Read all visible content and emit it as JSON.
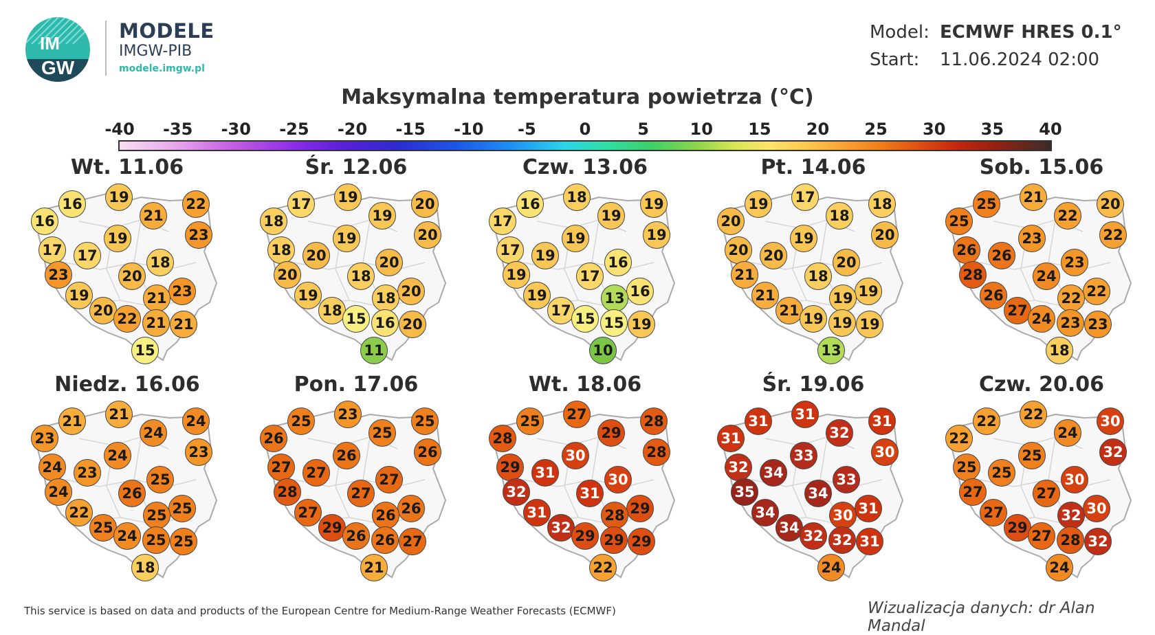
{
  "logo": {
    "circle_text_top": "IM",
    "circle_text_bottom": "GW",
    "title": "MODELE",
    "subtitle": "IMGW-PIB",
    "url": "modele.imgw.pl"
  },
  "meta": {
    "model_label": "Model:",
    "model_value": "ECMWF HRES 0.1°",
    "start_label": "Start:",
    "start_value": "11.06.2024 02:00"
  },
  "title": "Maksymalna temperatura powietrza (°C)",
  "scale": {
    "min": -40,
    "max": 40,
    "ticks": [
      "-40",
      "-35",
      "-30",
      "-25",
      "-20",
      "-15",
      "-10",
      "-5",
      "0",
      "5",
      "10",
      "15",
      "20",
      "25",
      "30",
      "35",
      "40"
    ]
  },
  "maps": [
    {
      "day": "Wt. 11.06",
      "temps": [
        16,
        16,
        19,
        22,
        21,
        23,
        17,
        19,
        17,
        18,
        23,
        20,
        19,
        23,
        21,
        20,
        22,
        21,
        21,
        15
      ]
    },
    {
      "day": "Śr. 12.06",
      "temps": [
        18,
        17,
        19,
        20,
        19,
        20,
        18,
        19,
        20,
        20,
        20,
        18,
        19,
        20,
        18,
        18,
        15,
        16,
        20,
        11
      ]
    },
    {
      "day": "Czw. 13.06",
      "temps": [
        17,
        16,
        18,
        19,
        19,
        19,
        17,
        19,
        19,
        16,
        19,
        17,
        19,
        16,
        13,
        17,
        15,
        15,
        19,
        10
      ]
    },
    {
      "day": "Pt. 14.06",
      "temps": [
        20,
        19,
        17,
        18,
        18,
        20,
        20,
        19,
        20,
        20,
        21,
        18,
        21,
        19,
        19,
        21,
        19,
        19,
        19,
        13
      ]
    },
    {
      "day": "Sob. 15.06",
      "temps": [
        25,
        25,
        21,
        20,
        22,
        22,
        26,
        23,
        26,
        23,
        28,
        24,
        26,
        22,
        22,
        27,
        24,
        23,
        23,
        18
      ]
    },
    {
      "day": "Niedz. 16.06",
      "temps": [
        23,
        21,
        21,
        24,
        24,
        23,
        24,
        24,
        23,
        25,
        24,
        26,
        22,
        25,
        25,
        25,
        24,
        25,
        25,
        18
      ]
    },
    {
      "day": "Pon. 17.06",
      "temps": [
        26,
        25,
        23,
        25,
        25,
        26,
        27,
        26,
        27,
        27,
        28,
        27,
        27,
        26,
        26,
        29,
        26,
        26,
        27,
        21
      ]
    },
    {
      "day": "Wt. 18.06",
      "temps": [
        28,
        25,
        27,
        28,
        29,
        28,
        29,
        30,
        31,
        30,
        32,
        31,
        31,
        29,
        28,
        32,
        29,
        29,
        29,
        22
      ]
    },
    {
      "day": "Śr. 19.06",
      "temps": [
        31,
        31,
        31,
        31,
        32,
        30,
        32,
        33,
        34,
        33,
        35,
        34,
        34,
        31,
        30,
        34,
        32,
        32,
        31,
        24
      ]
    },
    {
      "day": "Czw. 20.06",
      "temps": [
        22,
        22,
        22,
        30,
        24,
        32,
        25,
        25,
        25,
        30,
        27,
        27,
        27,
        30,
        32,
        29,
        27,
        28,
        32,
        24
      ]
    }
  ],
  "footer": {
    "left": "This service is based on data and products of the European Centre for Medium-Range Weather Forecasts (ECMWF)",
    "right": "Wizualizacja danych: dr Alan Mandal"
  }
}
